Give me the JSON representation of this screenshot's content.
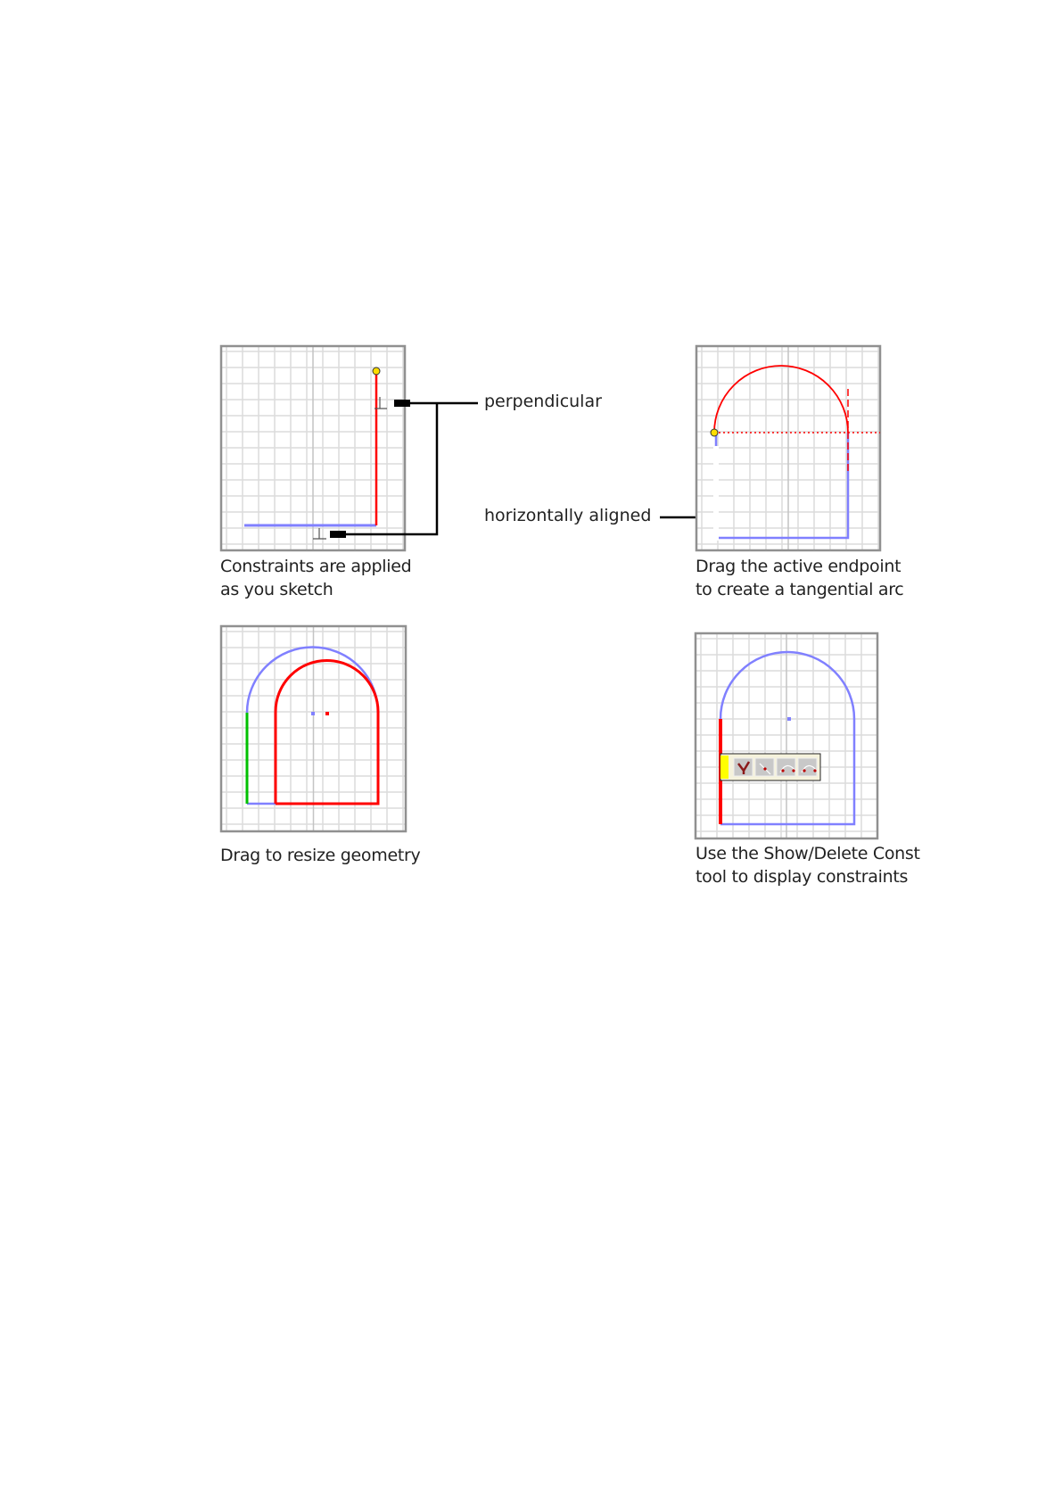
{
  "labels": {
    "perpendicular": "perpendicular",
    "horizontally_aligned": "horizontally aligned"
  },
  "panels": [
    {
      "caption": [
        "Constraints are applied",
        "as you sketch"
      ]
    },
    {
      "caption": [
        "Drag the active endpoint",
        "to create a tangential arc"
      ]
    },
    {
      "caption": [
        "Drag to resize geometry"
      ]
    },
    {
      "caption": [
        "Use the Show/Delete Const",
        "tool to display constraints"
      ]
    }
  ],
  "colors": {
    "active": "#ff0000",
    "constrained": "#8080ff",
    "fixed": "#00c000",
    "endpoint": "#ffdd00",
    "toolbar": "#f5f2dc",
    "toolbar_marker": "#ffff00"
  }
}
